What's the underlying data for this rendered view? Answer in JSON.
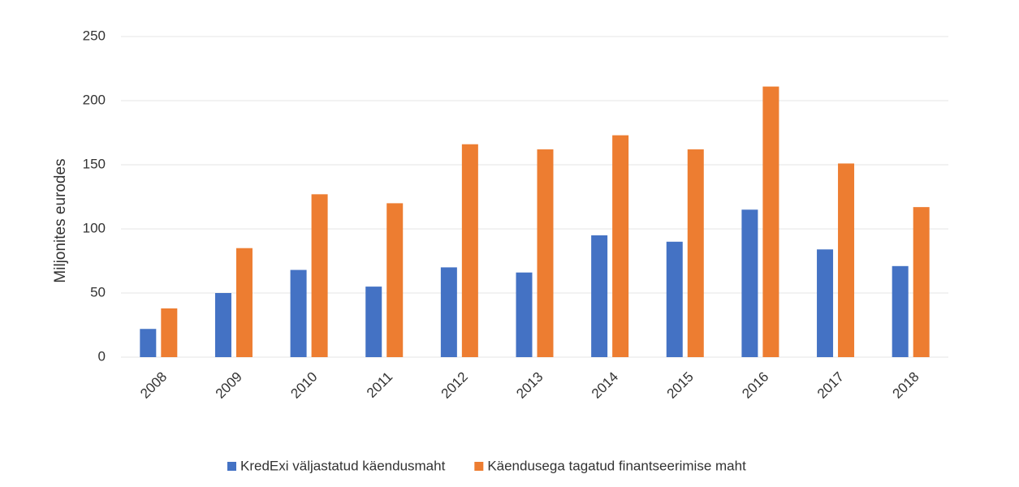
{
  "chart_data": {
    "type": "bar",
    "ylabel": "Miljonites eurodes",
    "categories": [
      "2008",
      "2009",
      "2010",
      "2011",
      "2012",
      "2013",
      "2014",
      "2015",
      "2016",
      "2017",
      "2018"
    ],
    "series": [
      {
        "name": "KredExi väljastatud käendusmaht",
        "color": "#4472c4",
        "values": [
          22,
          50,
          68,
          55,
          70,
          66,
          95,
          90,
          115,
          84,
          71
        ]
      },
      {
        "name": "Käendusega tagatud finantseerimise maht",
        "color": "#ed7d31",
        "values": [
          38,
          85,
          127,
          120,
          166,
          162,
          173,
          162,
          211,
          151,
          117
        ]
      }
    ],
    "ylim": [
      0,
      250
    ],
    "yticks": [
      0,
      50,
      100,
      150,
      200,
      250
    ],
    "grid": true,
    "legend": "bottom"
  }
}
